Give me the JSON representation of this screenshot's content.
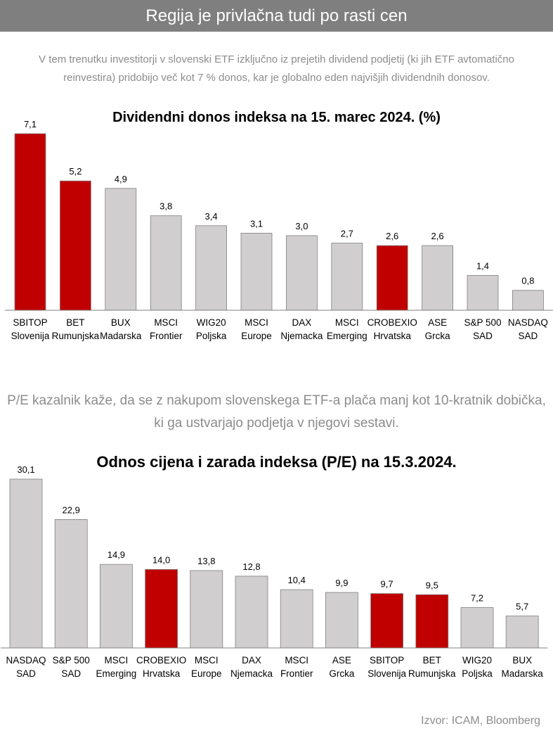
{
  "header": {
    "title": "Regija je privlačna tudi po rasti cen"
  },
  "intro1": "V tem trenutku investitorji v slovenski ETF izključno iz prejetih dividend podjetij (ki jih ETF avtomatično reinvestira) pridobijo več kot 7 % donos, kar je globalno eden najvišjih dividendnih donosov.",
  "intro2": "P/E kazalnik kaže, da se z nakupom slovenskega ETF-a plača manj kot 10-kratnik dobička, ki ga ustvarjajo podjetja v njegovi sestavi.",
  "source": "Izvor: ICAM, Bloomberg",
  "colors": {
    "highlight": "#c00000",
    "default": "#d0cece",
    "header": "#7f7f7f"
  },
  "chart_data": [
    {
      "type": "bar",
      "title": "Dividendni donos indeksa na 15. marec 2024. (%)",
      "categories": [
        [
          "SBITOP",
          "Slovenija"
        ],
        [
          "BET",
          "Rumunjska"
        ],
        [
          "BUX",
          "Madarska"
        ],
        [
          "MSCI",
          "Frontier"
        ],
        [
          "WIG20",
          "Poljska"
        ],
        [
          "MSCI",
          "Europe"
        ],
        [
          "DAX",
          "Njemacka"
        ],
        [
          "MSCI",
          "Emerging"
        ],
        [
          "CROBEXIO",
          "Hrvatska"
        ],
        [
          "ASE",
          "Grcka"
        ],
        [
          "S&P 500",
          "SAD"
        ],
        [
          "NASDAQ",
          "SAD"
        ]
      ],
      "values": [
        7.1,
        5.2,
        4.9,
        3.8,
        3.4,
        3.1,
        3.0,
        2.7,
        2.6,
        2.6,
        1.4,
        0.8
      ],
      "labels": [
        "7,1",
        "5,2",
        "4,9",
        "3,8",
        "3,4",
        "3,1",
        "3,0",
        "2,7",
        "2,6",
        "2,6",
        "1,4",
        "0,8"
      ],
      "highlighted": [
        true,
        true,
        false,
        false,
        false,
        false,
        false,
        false,
        true,
        false,
        false,
        false
      ],
      "ylim": [
        0,
        7.1
      ]
    },
    {
      "type": "bar",
      "title": "Odnos cijena i zarada indeksa (P/E) na 15.3.2024.",
      "categories": [
        [
          "NASDAQ",
          "SAD"
        ],
        [
          "S&P 500",
          "SAD"
        ],
        [
          "MSCI",
          "Emerging"
        ],
        [
          "CROBEXIO",
          "Hrvatska"
        ],
        [
          "MSCI",
          "Europe"
        ],
        [
          "DAX",
          "Njemacka"
        ],
        [
          "MSCI",
          "Frontier"
        ],
        [
          "ASE",
          "Grcka"
        ],
        [
          "SBITOP",
          "Slovenija"
        ],
        [
          "BET",
          "Rumunjska"
        ],
        [
          "WIG20",
          "Poljska"
        ],
        [
          "BUX",
          "Madarska"
        ]
      ],
      "values": [
        30.1,
        22.9,
        14.9,
        14.0,
        13.8,
        12.8,
        10.4,
        9.9,
        9.7,
        9.5,
        7.2,
        5.7
      ],
      "labels": [
        "30,1",
        "22,9",
        "14,9",
        "14,0",
        "13,8",
        "12,8",
        "10,4",
        "9,9",
        "9,7",
        "9,5",
        "7,2",
        "5,7"
      ],
      "highlighted": [
        false,
        false,
        false,
        true,
        false,
        false,
        false,
        false,
        true,
        true,
        false,
        false
      ],
      "ylim": [
        0,
        30.1
      ]
    }
  ]
}
